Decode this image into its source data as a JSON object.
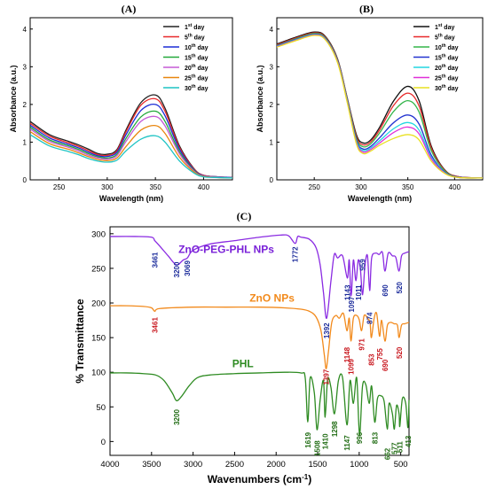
{
  "panels": {
    "A": {
      "label": "(A)"
    },
    "B": {
      "label": "(B)"
    },
    "C": {
      "label": "(C)"
    }
  },
  "chart_data": [
    {
      "id": "A",
      "type": "line",
      "title": "(A)",
      "xlabel": "Wavelength (nm)",
      "ylabel": "Absorbance (a.u.)",
      "xlim": [
        220,
        430
      ],
      "ylim": [
        0,
        4.3
      ],
      "xticks": [
        250,
        300,
        350,
        400
      ],
      "yticks": [
        0,
        1,
        2,
        3,
        4
      ],
      "legend_position": "top-right",
      "legend": [
        {
          "base": "1",
          "sup": "st",
          "rest": " day"
        },
        {
          "base": "5",
          "sup": "th",
          "rest": " day"
        },
        {
          "base": "10",
          "sup": "th",
          "rest": " day"
        },
        {
          "base": "15",
          "sup": "th",
          "rest": " day"
        },
        {
          "base": "20",
          "sup": "th",
          "rest": " day"
        },
        {
          "base": "25",
          "sup": "th",
          "rest": " day"
        },
        {
          "base": "30",
          "sup": "th",
          "rest": " day"
        }
      ],
      "series": [
        {
          "name": "1st day",
          "color": "#222222",
          "y": [
            1.55,
            1.2,
            1.02,
            0.93,
            0.82,
            0.7,
            0.68,
            0.8,
            1.35,
            2.05,
            2.25,
            1.9,
            0.9,
            0.3,
            0.12,
            0.08,
            0.06
          ]
        },
        {
          "name": "5th day",
          "color": "#e8292a",
          "y": [
            1.5,
            1.16,
            0.98,
            0.89,
            0.78,
            0.67,
            0.65,
            0.77,
            1.3,
            1.98,
            2.15,
            1.82,
            0.86,
            0.29,
            0.12,
            0.08,
            0.06
          ]
        },
        {
          "name": "10th day",
          "color": "#1c2dd6",
          "y": [
            1.45,
            1.11,
            0.94,
            0.85,
            0.74,
            0.64,
            0.62,
            0.73,
            1.22,
            1.84,
            2.0,
            1.7,
            0.81,
            0.27,
            0.11,
            0.08,
            0.06
          ]
        },
        {
          "name": "15th day",
          "color": "#22a83a",
          "y": [
            1.4,
            1.06,
            0.9,
            0.81,
            0.7,
            0.61,
            0.58,
            0.68,
            1.12,
            1.67,
            1.82,
            1.55,
            0.74,
            0.25,
            0.1,
            0.07,
            0.05
          ]
        },
        {
          "name": "20th day",
          "color": "#c55ad6",
          "y": [
            1.35,
            1.02,
            0.86,
            0.77,
            0.66,
            0.58,
            0.55,
            0.64,
            1.04,
            1.55,
            1.68,
            1.43,
            0.69,
            0.23,
            0.1,
            0.07,
            0.05
          ]
        },
        {
          "name": "25th day",
          "color": "#e8860f",
          "y": [
            1.28,
            0.96,
            0.81,
            0.72,
            0.62,
            0.54,
            0.51,
            0.58,
            0.9,
            1.32,
            1.44,
            1.23,
            0.6,
            0.21,
            0.09,
            0.06,
            0.05
          ]
        },
        {
          "name": "30th day",
          "color": "#1fc4c4",
          "y": [
            1.2,
            0.9,
            0.75,
            0.67,
            0.57,
            0.5,
            0.47,
            0.52,
            0.78,
            1.08,
            1.17,
            1.0,
            0.5,
            0.18,
            0.08,
            0.06,
            0.05
          ]
        }
      ],
      "x": [
        220,
        240,
        260,
        270,
        280,
        290,
        300,
        310,
        320,
        335,
        350,
        360,
        375,
        390,
        400,
        415,
        430
      ]
    },
    {
      "id": "B",
      "type": "line",
      "title": "(B)",
      "xlabel": "Wavelength (nm)",
      "ylabel": "Absorbance (a.u.)",
      "xlim": [
        210,
        430
      ],
      "ylim": [
        0,
        4.3
      ],
      "xticks": [
        250,
        300,
        350,
        400
      ],
      "yticks": [
        0,
        1,
        2,
        3,
        4
      ],
      "legend_position": "top-right",
      "legend": [
        {
          "base": "1",
          "sup": "st",
          "rest": " day"
        },
        {
          "base": "5",
          "sup": "th",
          "rest": " day"
        },
        {
          "base": "10",
          "sup": "th",
          "rest": " day"
        },
        {
          "base": "15",
          "sup": "th",
          "rest": " day"
        },
        {
          "base": "20",
          "sup": "th",
          "rest": " day"
        },
        {
          "base": "25",
          "sup": "th",
          "rest": " day"
        },
        {
          "base": "30",
          "sup": "th",
          "rest": " day"
        }
      ],
      "x": [
        210,
        230,
        250,
        262,
        275,
        285,
        295,
        302,
        310,
        320,
        335,
        350,
        362,
        375,
        390,
        405,
        430
      ],
      "series": [
        {
          "name": "1st day",
          "color": "#111111",
          "y": [
            3.6,
            3.78,
            3.92,
            3.8,
            3.2,
            2.2,
            1.2,
            0.98,
            1.05,
            1.4,
            2.1,
            2.48,
            2.1,
            0.9,
            0.25,
            0.08,
            0.05
          ]
        },
        {
          "name": "5th day",
          "color": "#e8292a",
          "y": [
            3.58,
            3.76,
            3.9,
            3.78,
            3.18,
            2.18,
            1.15,
            0.93,
            1.0,
            1.33,
            1.98,
            2.3,
            1.96,
            0.85,
            0.24,
            0.08,
            0.05
          ]
        },
        {
          "name": "10th day",
          "color": "#33b54a",
          "y": [
            3.56,
            3.74,
            3.88,
            3.76,
            3.16,
            2.16,
            1.1,
            0.88,
            0.95,
            1.25,
            1.82,
            2.1,
            1.8,
            0.78,
            0.22,
            0.07,
            0.05
          ]
        },
        {
          "name": "15th day",
          "color": "#2233d0",
          "y": [
            3.55,
            3.72,
            3.86,
            3.74,
            3.14,
            2.14,
            1.05,
            0.82,
            0.88,
            1.12,
            1.52,
            1.72,
            1.48,
            0.66,
            0.19,
            0.07,
            0.05
          ]
        },
        {
          "name": "20th day",
          "color": "#22d6e0",
          "y": [
            3.54,
            3.71,
            3.85,
            3.73,
            3.13,
            2.12,
            1.02,
            0.78,
            0.84,
            1.04,
            1.36,
            1.52,
            1.32,
            0.6,
            0.18,
            0.06,
            0.05
          ]
        },
        {
          "name": "25th day",
          "color": "#e030d8",
          "y": [
            3.53,
            3.7,
            3.84,
            3.72,
            3.12,
            2.1,
            0.99,
            0.74,
            0.8,
            0.98,
            1.26,
            1.4,
            1.22,
            0.56,
            0.17,
            0.06,
            0.05
          ]
        },
        {
          "name": "30th day",
          "color": "#e8e020",
          "y": [
            3.52,
            3.69,
            3.83,
            3.71,
            3.1,
            2.08,
            0.96,
            0.7,
            0.76,
            0.92,
            1.1,
            1.2,
            1.06,
            0.5,
            0.16,
            0.06,
            0.05
          ]
        }
      ]
    },
    {
      "id": "C",
      "type": "line",
      "title": "(C)",
      "xlabel": "Wavenumbers (cm",
      "xlabel_sup": "-1",
      "xlabel_end": ")",
      "ylabel": "% Transmittance",
      "xlim": [
        4000,
        400
      ],
      "ylim": [
        -20,
        310
      ],
      "xticks": [
        4000,
        3500,
        3000,
        2500,
        2000,
        1500,
        1000,
        500
      ],
      "yticks": [
        0,
        50,
        100,
        150,
        200,
        250,
        300
      ],
      "series": [
        {
          "name": "ZnO-PEG-PHL NPs",
          "color": "#8a2be2",
          "x": [
            4000,
            3700,
            3500,
            3461,
            3400,
            3300,
            3200,
            3120,
            3069,
            3000,
            2800,
            2500,
            2200,
            1950,
            1850,
            1772,
            1740,
            1700,
            1600,
            1520,
            1470,
            1430,
            1392,
            1340,
            1300,
            1260,
            1200,
            1143,
            1120,
            1097,
            1070,
            1040,
            1011,
            985,
            959,
            930,
            900,
            874,
            850,
            800,
            760,
            720,
            690,
            650,
            600,
            560,
            520,
            490,
            450,
            400
          ],
          "y": [
            296,
            296,
            295,
            290,
            282,
            268,
            255,
            262,
            265,
            276,
            285,
            290,
            295,
            298,
            297,
            286,
            296,
            295,
            292,
            280,
            255,
            215,
            178,
            232,
            270,
            265,
            268,
            236,
            262,
            210,
            262,
            232,
            262,
            248,
            212,
            255,
            268,
            218,
            265,
            272,
            270,
            273,
            246,
            272,
            268,
            266,
            246,
            268,
            272,
            274
          ]
        },
        {
          "name": "ZnO NPs",
          "color": "#f28a1c",
          "x": [
            4000,
            3800,
            3600,
            3500,
            3461,
            3400,
            3000,
            2600,
            2200,
            1900,
            1700,
            1600,
            1520,
            1460,
            1420,
            1397,
            1370,
            1330,
            1280,
            1240,
            1190,
            1148,
            1120,
            1099,
            1070,
            1030,
            1000,
            971,
            940,
            900,
            870,
            853,
            820,
            790,
            755,
            730,
            690,
            660,
            620,
            580,
            540,
            520,
            490,
            450,
            400
          ],
          "y": [
            196,
            196,
            195,
            193,
            188,
            192,
            194,
            194,
            194,
            193,
            191,
            188,
            180,
            160,
            125,
            105,
            130,
            172,
            182,
            178,
            185,
            160,
            178,
            145,
            178,
            182,
            176,
            160,
            182,
            178,
            172,
            150,
            178,
            185,
            152,
            175,
            145,
            168,
            172,
            170,
            168,
            150,
            168,
            170,
            172
          ]
        },
        {
          "name": "PHL",
          "color": "#2e8b22",
          "x": [
            4000,
            3800,
            3600,
            3450,
            3350,
            3250,
            3200,
            3140,
            3050,
            2950,
            2800,
            2500,
            2200,
            1900,
            1700,
            1650,
            1619,
            1590,
            1540,
            1508,
            1470,
            1430,
            1410,
            1380,
            1340,
            1298,
            1250,
            1200,
            1147,
            1110,
            1070,
            1030,
            996,
            960,
            920,
            880,
            850,
            813,
            780,
            740,
            700,
            662,
            640,
            600,
            577,
            550,
            520,
            511,
            480,
            440,
            413,
            400
          ],
          "y": [
            99,
            99,
            98,
            96,
            88,
            70,
            59,
            65,
            80,
            92,
            96,
            98,
            99,
            100,
            99,
            92,
            28,
            92,
            70,
            17,
            60,
            88,
            35,
            90,
            78,
            40,
            88,
            92,
            24,
            88,
            55,
            92,
            10,
            80,
            82,
            55,
            80,
            28,
            62,
            66,
            58,
            18,
            55,
            40,
            18,
            52,
            40,
            22,
            62,
            55,
            20,
            60
          ]
        }
      ],
      "annotations": {
        "zpp": [
          {
            "text": "3461",
            "x": 3461
          },
          {
            "text": "3200",
            "x": 3200
          },
          {
            "text": "3069",
            "x": 3069
          },
          {
            "text": "1772",
            "x": 1772
          },
          {
            "text": "1392",
            "x": 1392
          },
          {
            "text": "1143",
            "x": 1143
          },
          {
            "text": "1097",
            "x": 1097
          },
          {
            "text": "1011",
            "x": 1011
          },
          {
            "text": "959",
            "x": 959
          },
          {
            "text": "874",
            "x": 874
          },
          {
            "text": "690",
            "x": 690
          },
          {
            "text": "520",
            "x": 520
          }
        ],
        "zno": [
          {
            "text": "3461",
            "x": 3461
          },
          {
            "text": "1397",
            "x": 1397
          },
          {
            "text": "1148",
            "x": 1148
          },
          {
            "text": "1099",
            "x": 1099
          },
          {
            "text": "971",
            "x": 971
          },
          {
            "text": "853",
            "x": 853
          },
          {
            "text": "755",
            "x": 755
          },
          {
            "text": "690",
            "x": 690
          },
          {
            "text": "520",
            "x": 520
          }
        ],
        "phl": [
          {
            "text": "3200",
            "x": 3200
          },
          {
            "text": "1619",
            "x": 1619
          },
          {
            "text": "1508",
            "x": 1508
          },
          {
            "text": "1410",
            "x": 1410
          },
          {
            "text": "1298",
            "x": 1298
          },
          {
            "text": "1147",
            "x": 1147
          },
          {
            "text": "996",
            "x": 996
          },
          {
            "text": "813",
            "x": 813
          },
          {
            "text": "662",
            "x": 662
          },
          {
            "text": "577",
            "x": 577
          },
          {
            "text": "511",
            "x": 511
          },
          {
            "text": "413",
            "x": 413
          }
        ]
      },
      "annotation_colors": {
        "zpp": "#1a2a9a",
        "zno": "#c8161d",
        "phl": "#1f6b12"
      }
    }
  ]
}
